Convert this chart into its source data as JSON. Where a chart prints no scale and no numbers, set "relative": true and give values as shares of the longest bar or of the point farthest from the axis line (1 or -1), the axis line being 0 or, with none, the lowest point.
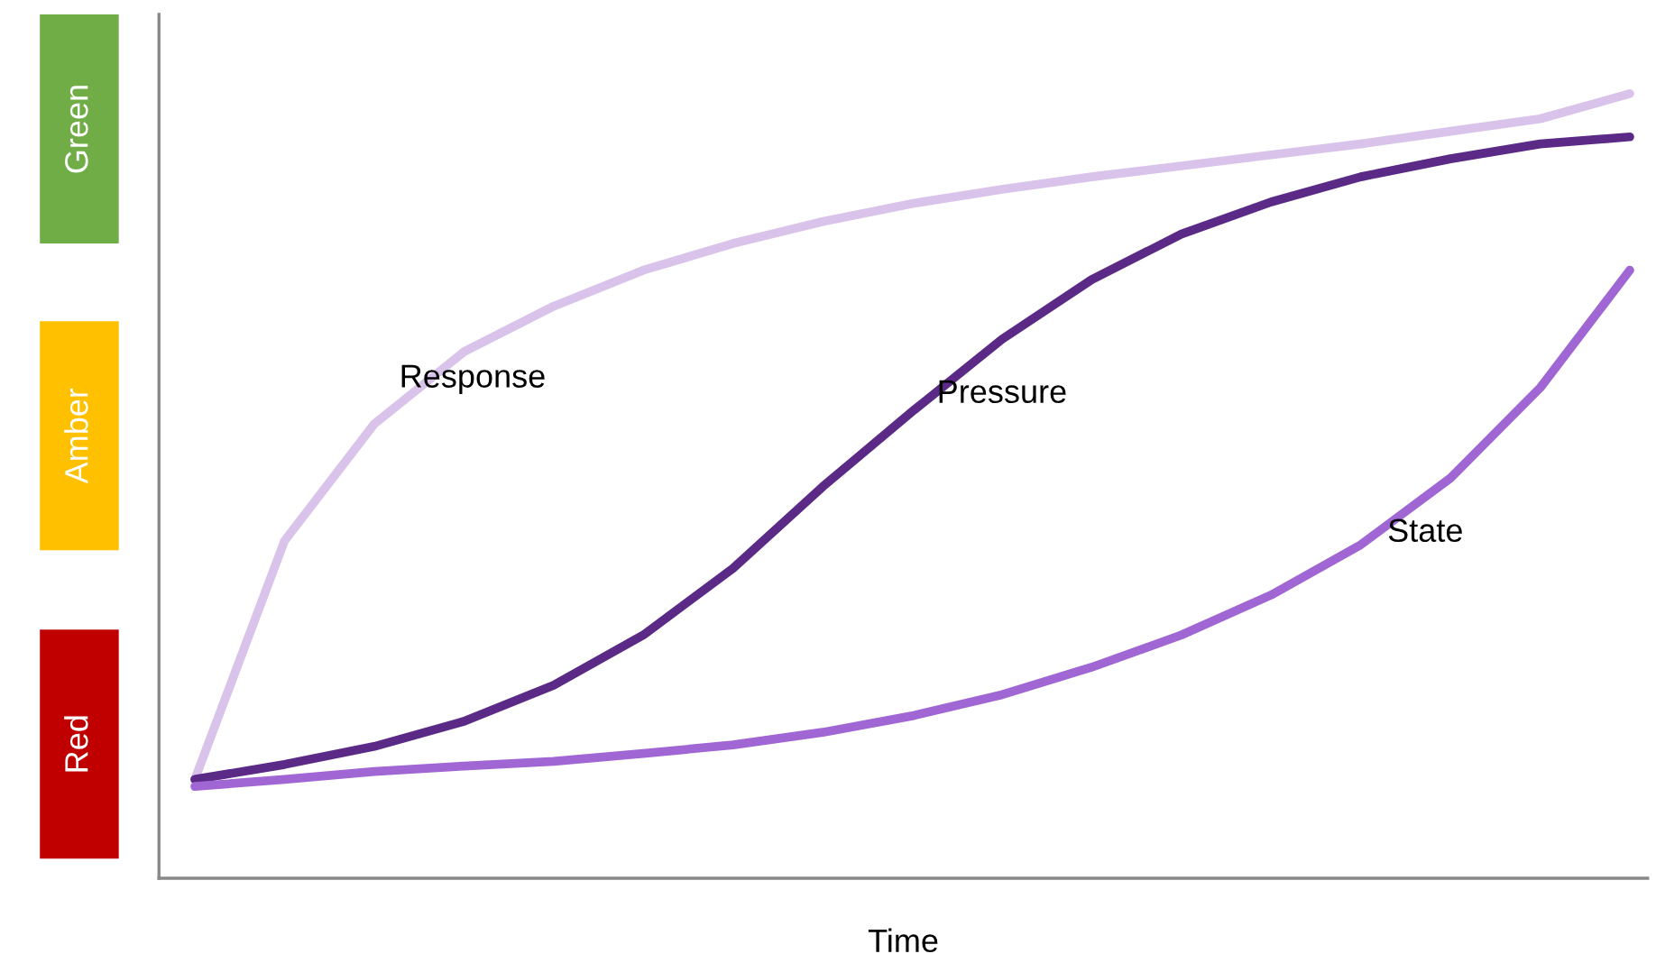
{
  "chart_data": {
    "type": "line",
    "relative": true,
    "xlabel": "Time",
    "legend": false,
    "marker": "none",
    "line_style": "solid",
    "categories": [
      null,
      null,
      null,
      null,
      null,
      null,
      null,
      null,
      null,
      null,
      null,
      null,
      null,
      null,
      null,
      null,
      null
    ],
    "series": [
      {
        "name": "Response",
        "color": "#d9c3ea",
        "values": [
          0.126,
          0.43,
          0.579,
          0.671,
          0.729,
          0.775,
          0.809,
          0.837,
          0.86,
          0.878,
          0.894,
          0.908,
          0.922,
          0.936,
          0.952,
          0.968,
          1.0
        ]
      },
      {
        "name": "Pressure",
        "color": "#5b2a86",
        "values": [
          0.126,
          0.145,
          0.168,
          0.2,
          0.246,
          0.31,
          0.395,
          0.499,
          0.595,
          0.687,
          0.763,
          0.821,
          0.862,
          0.894,
          0.917,
          0.936,
          0.945
        ]
      },
      {
        "name": "State",
        "color": "#a066d3",
        "values": [
          0.117,
          0.126,
          0.136,
          0.143,
          0.149,
          0.159,
          0.17,
          0.186,
          0.207,
          0.234,
          0.269,
          0.31,
          0.361,
          0.425,
          0.51,
          0.625,
          0.775
        ]
      }
    ],
    "annotations": [
      "Red",
      "Amber",
      "Green"
    ]
  }
}
